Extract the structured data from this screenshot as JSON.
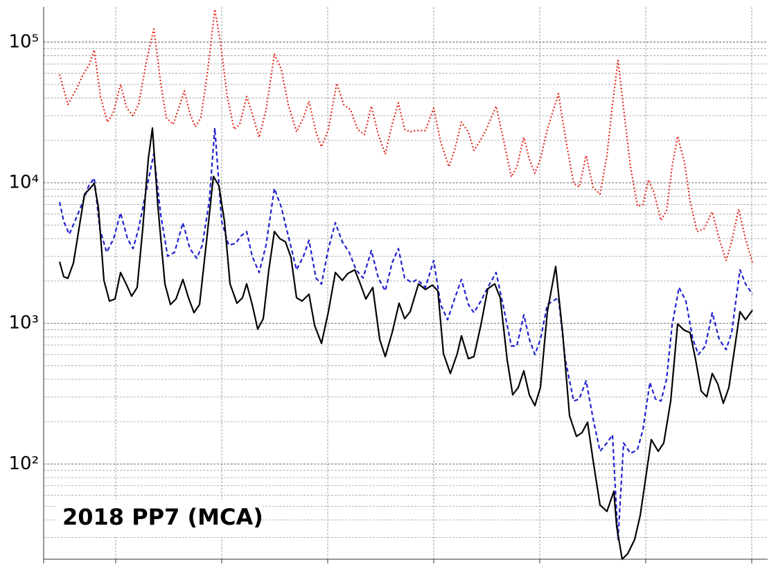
{
  "chart_data": {
    "type": "line",
    "annotation": "2018 PP7 (MCA)",
    "log_scale_y": true,
    "grid": true,
    "xlim": [
      0,
      1045
    ],
    "xticks": [
      104,
      257,
      410,
      563,
      716,
      869,
      1022
    ],
    "ylim": [
      21,
      178000
    ],
    "yticks": [
      {
        "value": 100,
        "label": "10²"
      },
      {
        "value": 1000,
        "label": "10³"
      },
      {
        "value": 10000,
        "label": "10⁴"
      },
      {
        "value": 100000,
        "label": "10⁵"
      }
    ],
    "yminorticks": [
      30,
      40,
      50,
      60,
      70,
      80,
      90,
      200,
      300,
      400,
      500,
      600,
      700,
      800,
      900,
      2000,
      3000,
      4000,
      5000,
      6000,
      7000,
      8000,
      9000,
      20000,
      30000,
      40000,
      50000,
      60000,
      70000,
      80000,
      90000
    ],
    "series": [
      {
        "color": "#e8261c",
        "linestyle": "dotted",
        "x": [
          23,
          35,
          47,
          57,
          65,
          73,
          82,
          92,
          100,
          111,
          120,
          129,
          137,
          149,
          159,
          169,
          177,
          187,
          195,
          203,
          211,
          219,
          227,
          237,
          247,
          255,
          265,
          275,
          283,
          293,
          301,
          311,
          321,
          333,
          343,
          353,
          365,
          375,
          383,
          393,
          401,
          411,
          423,
          433,
          443,
          453,
          463,
          473,
          483,
          493,
          503,
          512,
          521,
          529,
          537,
          551,
          563,
          573,
          585,
          593,
          603,
          613,
          621,
          629,
          639,
          653,
          663,
          675,
          683,
          693,
          701,
          709,
          717,
          727,
          743,
          753,
          765,
          773,
          783,
          793,
          803,
          813,
          821,
          829,
          837,
          847,
          857,
          865,
          873,
          881,
          891,
          899,
          907,
          915,
          925,
          933,
          943,
          953,
          965,
          975,
          985,
          993,
          1003,
          1013,
          1023
        ],
        "values": [
          59000,
          36000,
          46000,
          59000,
          68000,
          88000,
          41000,
          27000,
          31000,
          50000,
          34000,
          30000,
          36000,
          76000,
          124000,
          51000,
          29000,
          26000,
          34000,
          45000,
          31000,
          25000,
          29000,
          64000,
          171000,
          101000,
          41000,
          24000,
          26000,
          41000,
          31000,
          21000,
          33000,
          82000,
          64000,
          36000,
          23000,
          29000,
          38000,
          23000,
          18000,
          24000,
          51000,
          36000,
          33000,
          24000,
          22000,
          35000,
          22000,
          16000,
          26000,
          37000,
          24000,
          23000,
          23500,
          23500,
          34000,
          19500,
          13000,
          17000,
          27000,
          23000,
          17000,
          19500,
          24000,
          35000,
          21000,
          11000,
          13000,
          21000,
          14700,
          11700,
          14700,
          24000,
          43000,
          21000,
          9900,
          9300,
          15600,
          9300,
          8300,
          15600,
          36000,
          74000,
          34000,
          13000,
          6800,
          7000,
          10500,
          8500,
          5400,
          6300,
          13000,
          21400,
          13900,
          7400,
          4500,
          4700,
          6200,
          4000,
          2800,
          3800,
          6500,
          4000,
          2700
        ]
      },
      {
        "color": "#1f1fd0",
        "linestyle": "dashed",
        "x": [
          23,
          29,
          37,
          47,
          57,
          65,
          73,
          81,
          91,
          101,
          111,
          121,
          129,
          137,
          147,
          159,
          169,
          179,
          189,
          201,
          211,
          221,
          229,
          239,
          247,
          257,
          267,
          277,
          285,
          293,
          301,
          311,
          321,
          333,
          343,
          353,
          365,
          375,
          383,
          393,
          401,
          411,
          421,
          431,
          441,
          451,
          461,
          473,
          483,
          493,
          503,
          512,
          521,
          531,
          539,
          551,
          563,
          573,
          583,
          593,
          603,
          613,
          621,
          631,
          641,
          653,
          663,
          675,
          683,
          693,
          701,
          709,
          717,
          727,
          743,
          753,
          765,
          773,
          783,
          793,
          803,
          813,
          821,
          829,
          837,
          847,
          857,
          865,
          875,
          883,
          891,
          899,
          907,
          917,
          927,
          937,
          945,
          955,
          965,
          975,
          985,
          993,
          1005,
          1013,
          1023
        ],
        "values": [
          7300,
          5300,
          4300,
          5600,
          7400,
          9500,
          10800,
          4700,
          3200,
          4000,
          6100,
          4000,
          3400,
          4700,
          8300,
          16100,
          5900,
          3000,
          3200,
          5200,
          3400,
          2900,
          3600,
          7400,
          24500,
          5300,
          3600,
          3700,
          4200,
          4500,
          3000,
          2300,
          3600,
          9100,
          6700,
          4200,
          2400,
          3000,
          3900,
          2100,
          1900,
          3400,
          5200,
          3800,
          3200,
          2400,
          2100,
          3300,
          2100,
          1700,
          2700,
          3400,
          2100,
          1950,
          2050,
          1800,
          2800,
          1360,
          1060,
          1490,
          2050,
          1360,
          1190,
          1440,
          1800,
          2300,
          1360,
          690,
          690,
          1150,
          770,
          600,
          770,
          1360,
          1520,
          550,
          280,
          290,
          390,
          210,
          123,
          141,
          161,
          29,
          141,
          119,
          126,
          176,
          380,
          290,
          280,
          400,
          970,
          1800,
          1440,
          770,
          600,
          690,
          1190,
          770,
          650,
          860,
          2400,
          1910,
          1610
        ]
      },
      {
        "color": "#000000",
        "linestyle": "solid",
        "x": [
          23,
          29,
          35,
          43,
          51,
          59,
          67,
          73,
          79,
          87,
          95,
          103,
          111,
          119,
          127,
          135,
          143,
          151,
          157,
          165,
          175,
          183,
          191,
          201,
          209,
          217,
          225,
          235,
          245,
          253,
          261,
          269,
          279,
          287,
          293,
          301,
          309,
          317,
          325,
          333,
          341,
          349,
          357,
          365,
          373,
          383,
          391,
          401,
          411,
          421,
          431,
          439,
          449,
          457,
          465,
          475,
          485,
          493,
          503,
          513,
          521,
          529,
          541,
          551,
          561,
          569,
          577,
          587,
          597,
          603,
          613,
          621,
          631,
          641,
          651,
          659,
          669,
          677,
          685,
          693,
          701,
          709,
          717,
          727,
          739,
          749,
          759,
          769,
          777,
          785,
          793,
          803,
          813,
          823,
          827,
          835,
          843,
          853,
          861,
          869,
          877,
          887,
          895,
          905,
          915,
          925,
          933,
          941,
          949,
          957,
          965,
          973,
          981,
          989,
          997,
          1005,
          1013,
          1023
        ],
        "values": [
          2740,
          2140,
          2090,
          2690,
          4700,
          8300,
          9100,
          9900,
          6700,
          2020,
          1440,
          1490,
          2300,
          1910,
          1560,
          1800,
          4700,
          14700,
          24500,
          6700,
          1910,
          1360,
          1490,
          2050,
          1520,
          1190,
          1360,
          3800,
          11100,
          9500,
          5300,
          1910,
          1390,
          1520,
          1910,
          1360,
          910,
          1080,
          2400,
          4500,
          4000,
          3800,
          2940,
          1520,
          1440,
          1610,
          970,
          720,
          1210,
          2300,
          2020,
          2260,
          2400,
          1910,
          1490,
          1800,
          770,
          580,
          860,
          1390,
          1080,
          1210,
          1910,
          1740,
          1870,
          1700,
          610,
          440,
          610,
          815,
          560,
          580,
          970,
          1760,
          1910,
          1520,
          550,
          310,
          350,
          460,
          310,
          260,
          350,
          1210,
          2540,
          860,
          220,
          157,
          167,
          198,
          106,
          51,
          46,
          64,
          36,
          21,
          23,
          29,
          43,
          80,
          149,
          123,
          141,
          280,
          990,
          890,
          860,
          550,
          330,
          300,
          440,
          370,
          270,
          350,
          650,
          1210,
          1060,
          1240
        ]
      }
    ]
  }
}
